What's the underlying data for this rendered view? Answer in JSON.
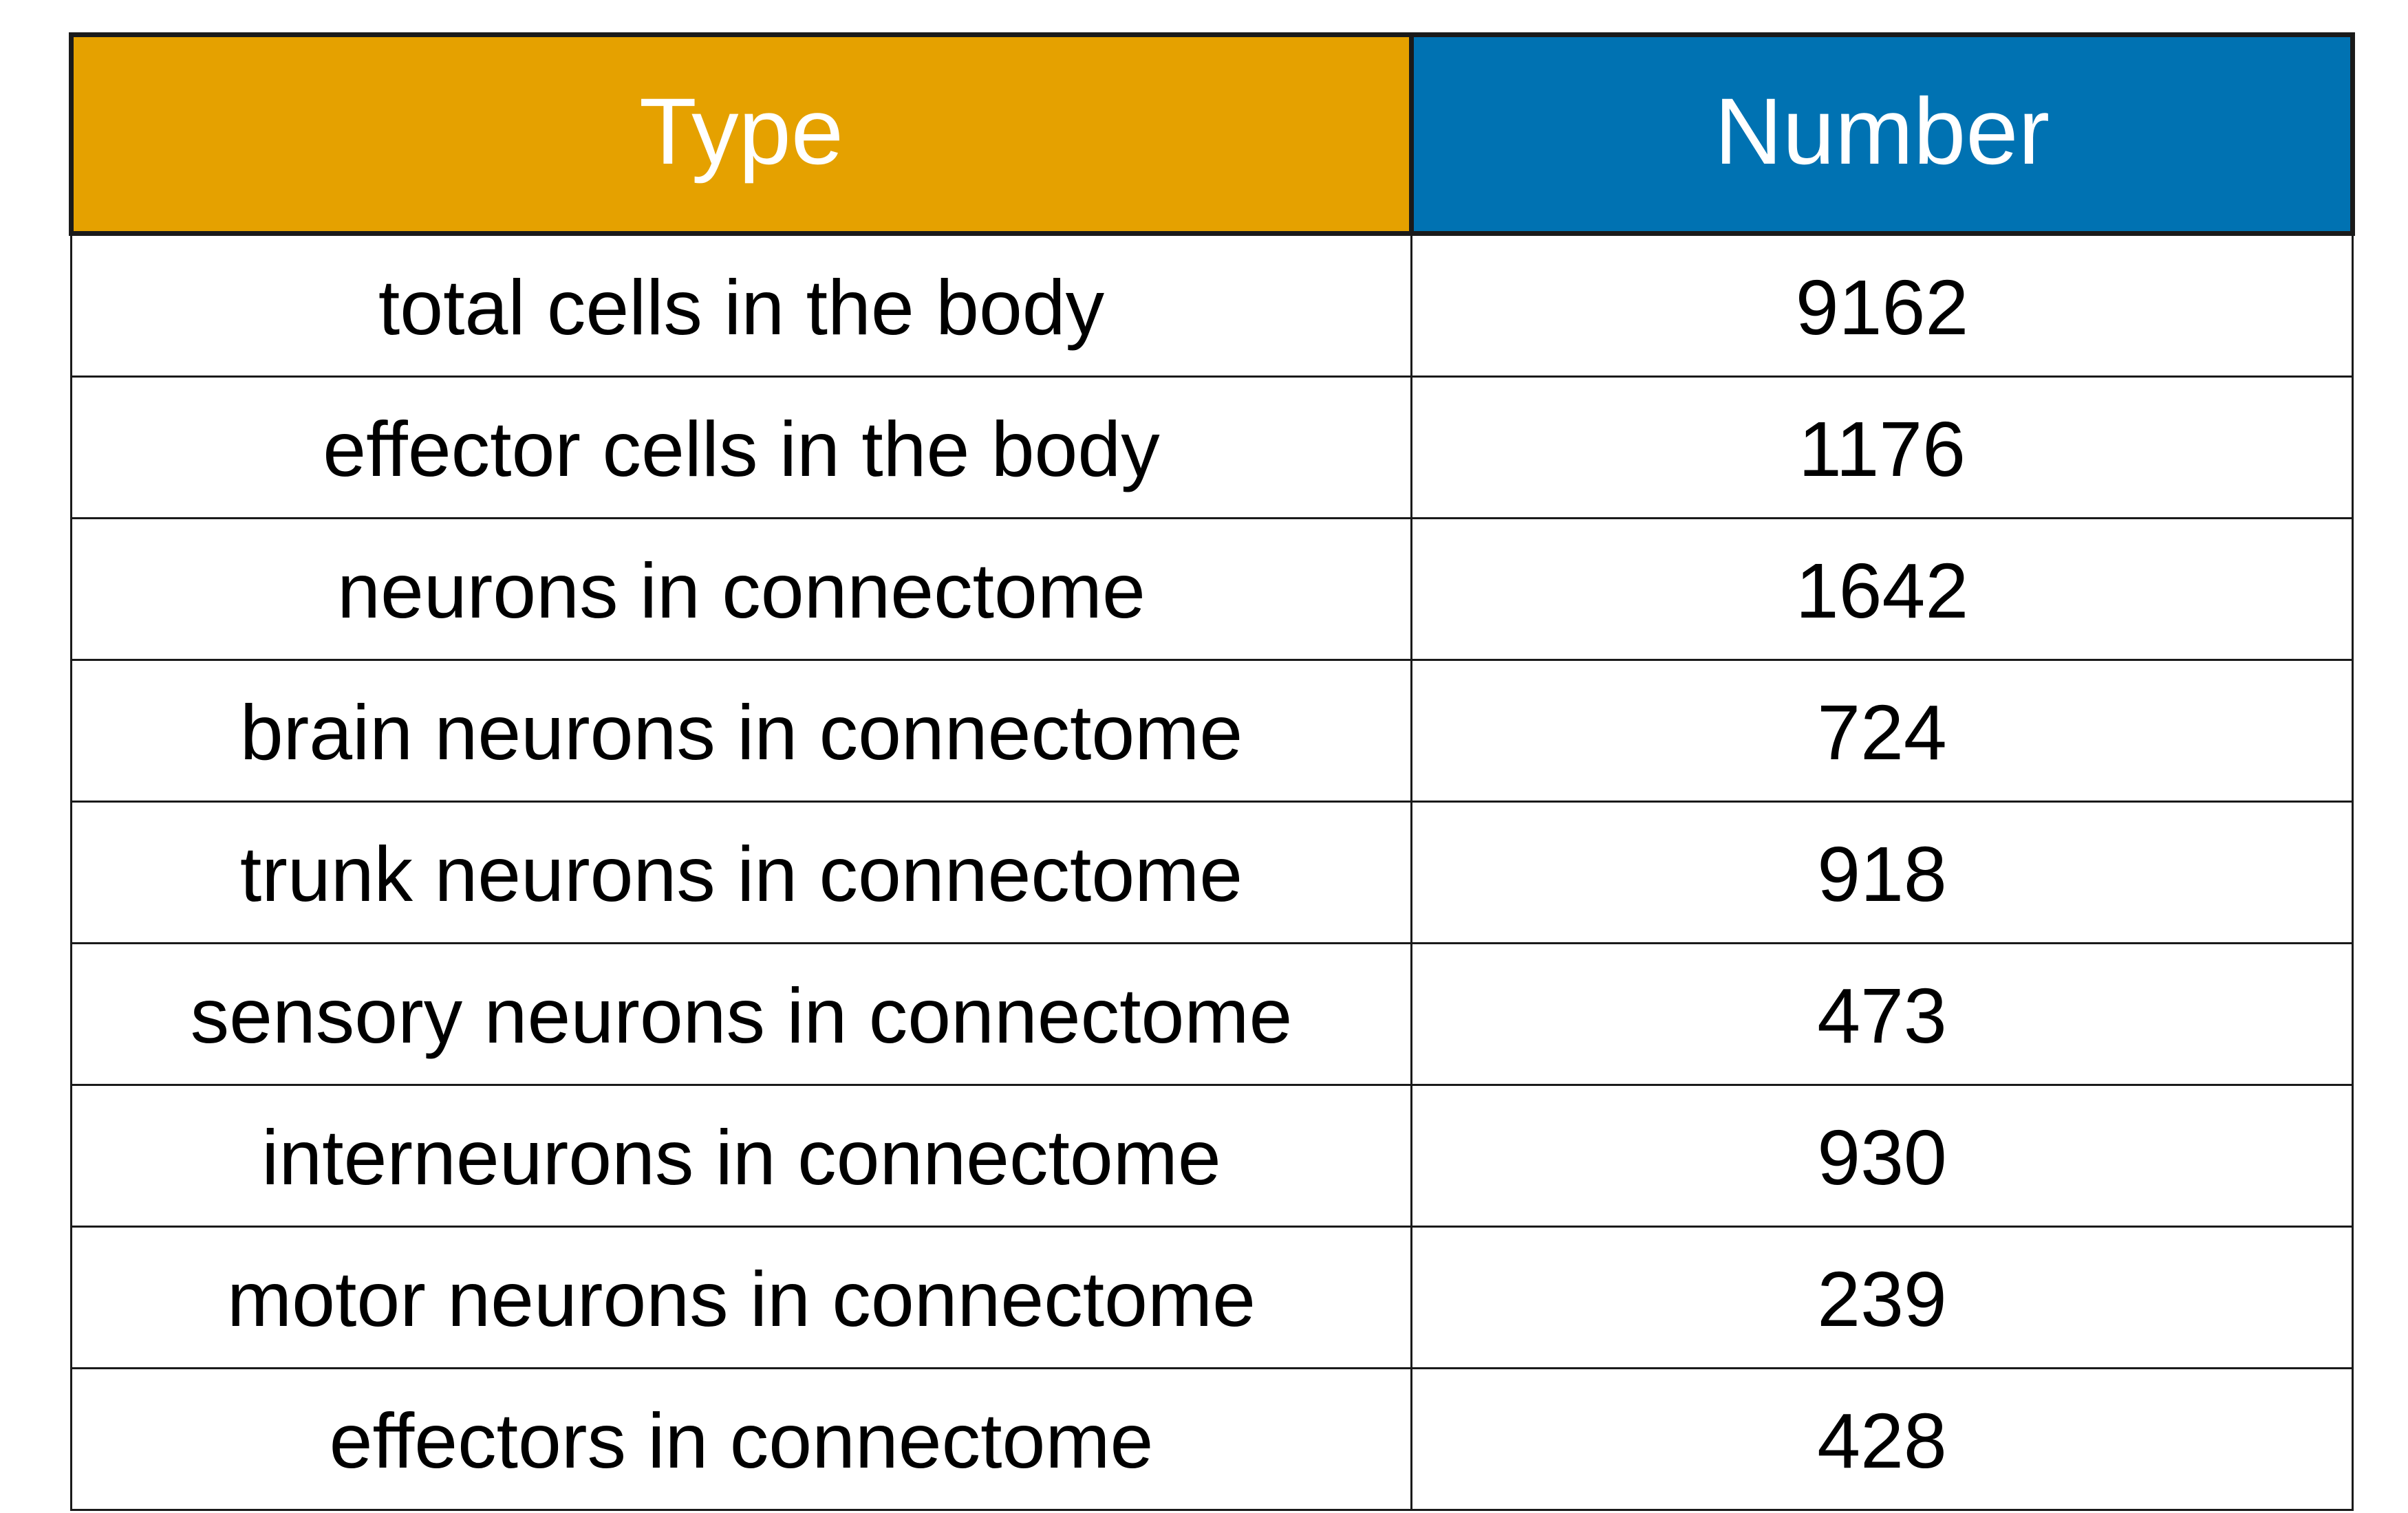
{
  "table": {
    "headers": {
      "type": "Type",
      "number": "Number"
    },
    "header_colors": {
      "type": "#e5a100",
      "number": "#0072b2"
    },
    "rows": [
      {
        "type": "total cells in the body",
        "number": "9162"
      },
      {
        "type": "effector cells in the body",
        "number": "1176"
      },
      {
        "type": "neurons in connectome",
        "number": "1642"
      },
      {
        "type": "brain neurons in connectome",
        "number": "724"
      },
      {
        "type": "trunk neurons in connectome",
        "number": "918"
      },
      {
        "type": "sensory neurons in connectome",
        "number": "473"
      },
      {
        "type": "interneurons in connectome",
        "number": "930"
      },
      {
        "type": "motor neurons in connectome",
        "number": "239"
      },
      {
        "type": "effectors in connectome",
        "number": "428"
      }
    ]
  }
}
